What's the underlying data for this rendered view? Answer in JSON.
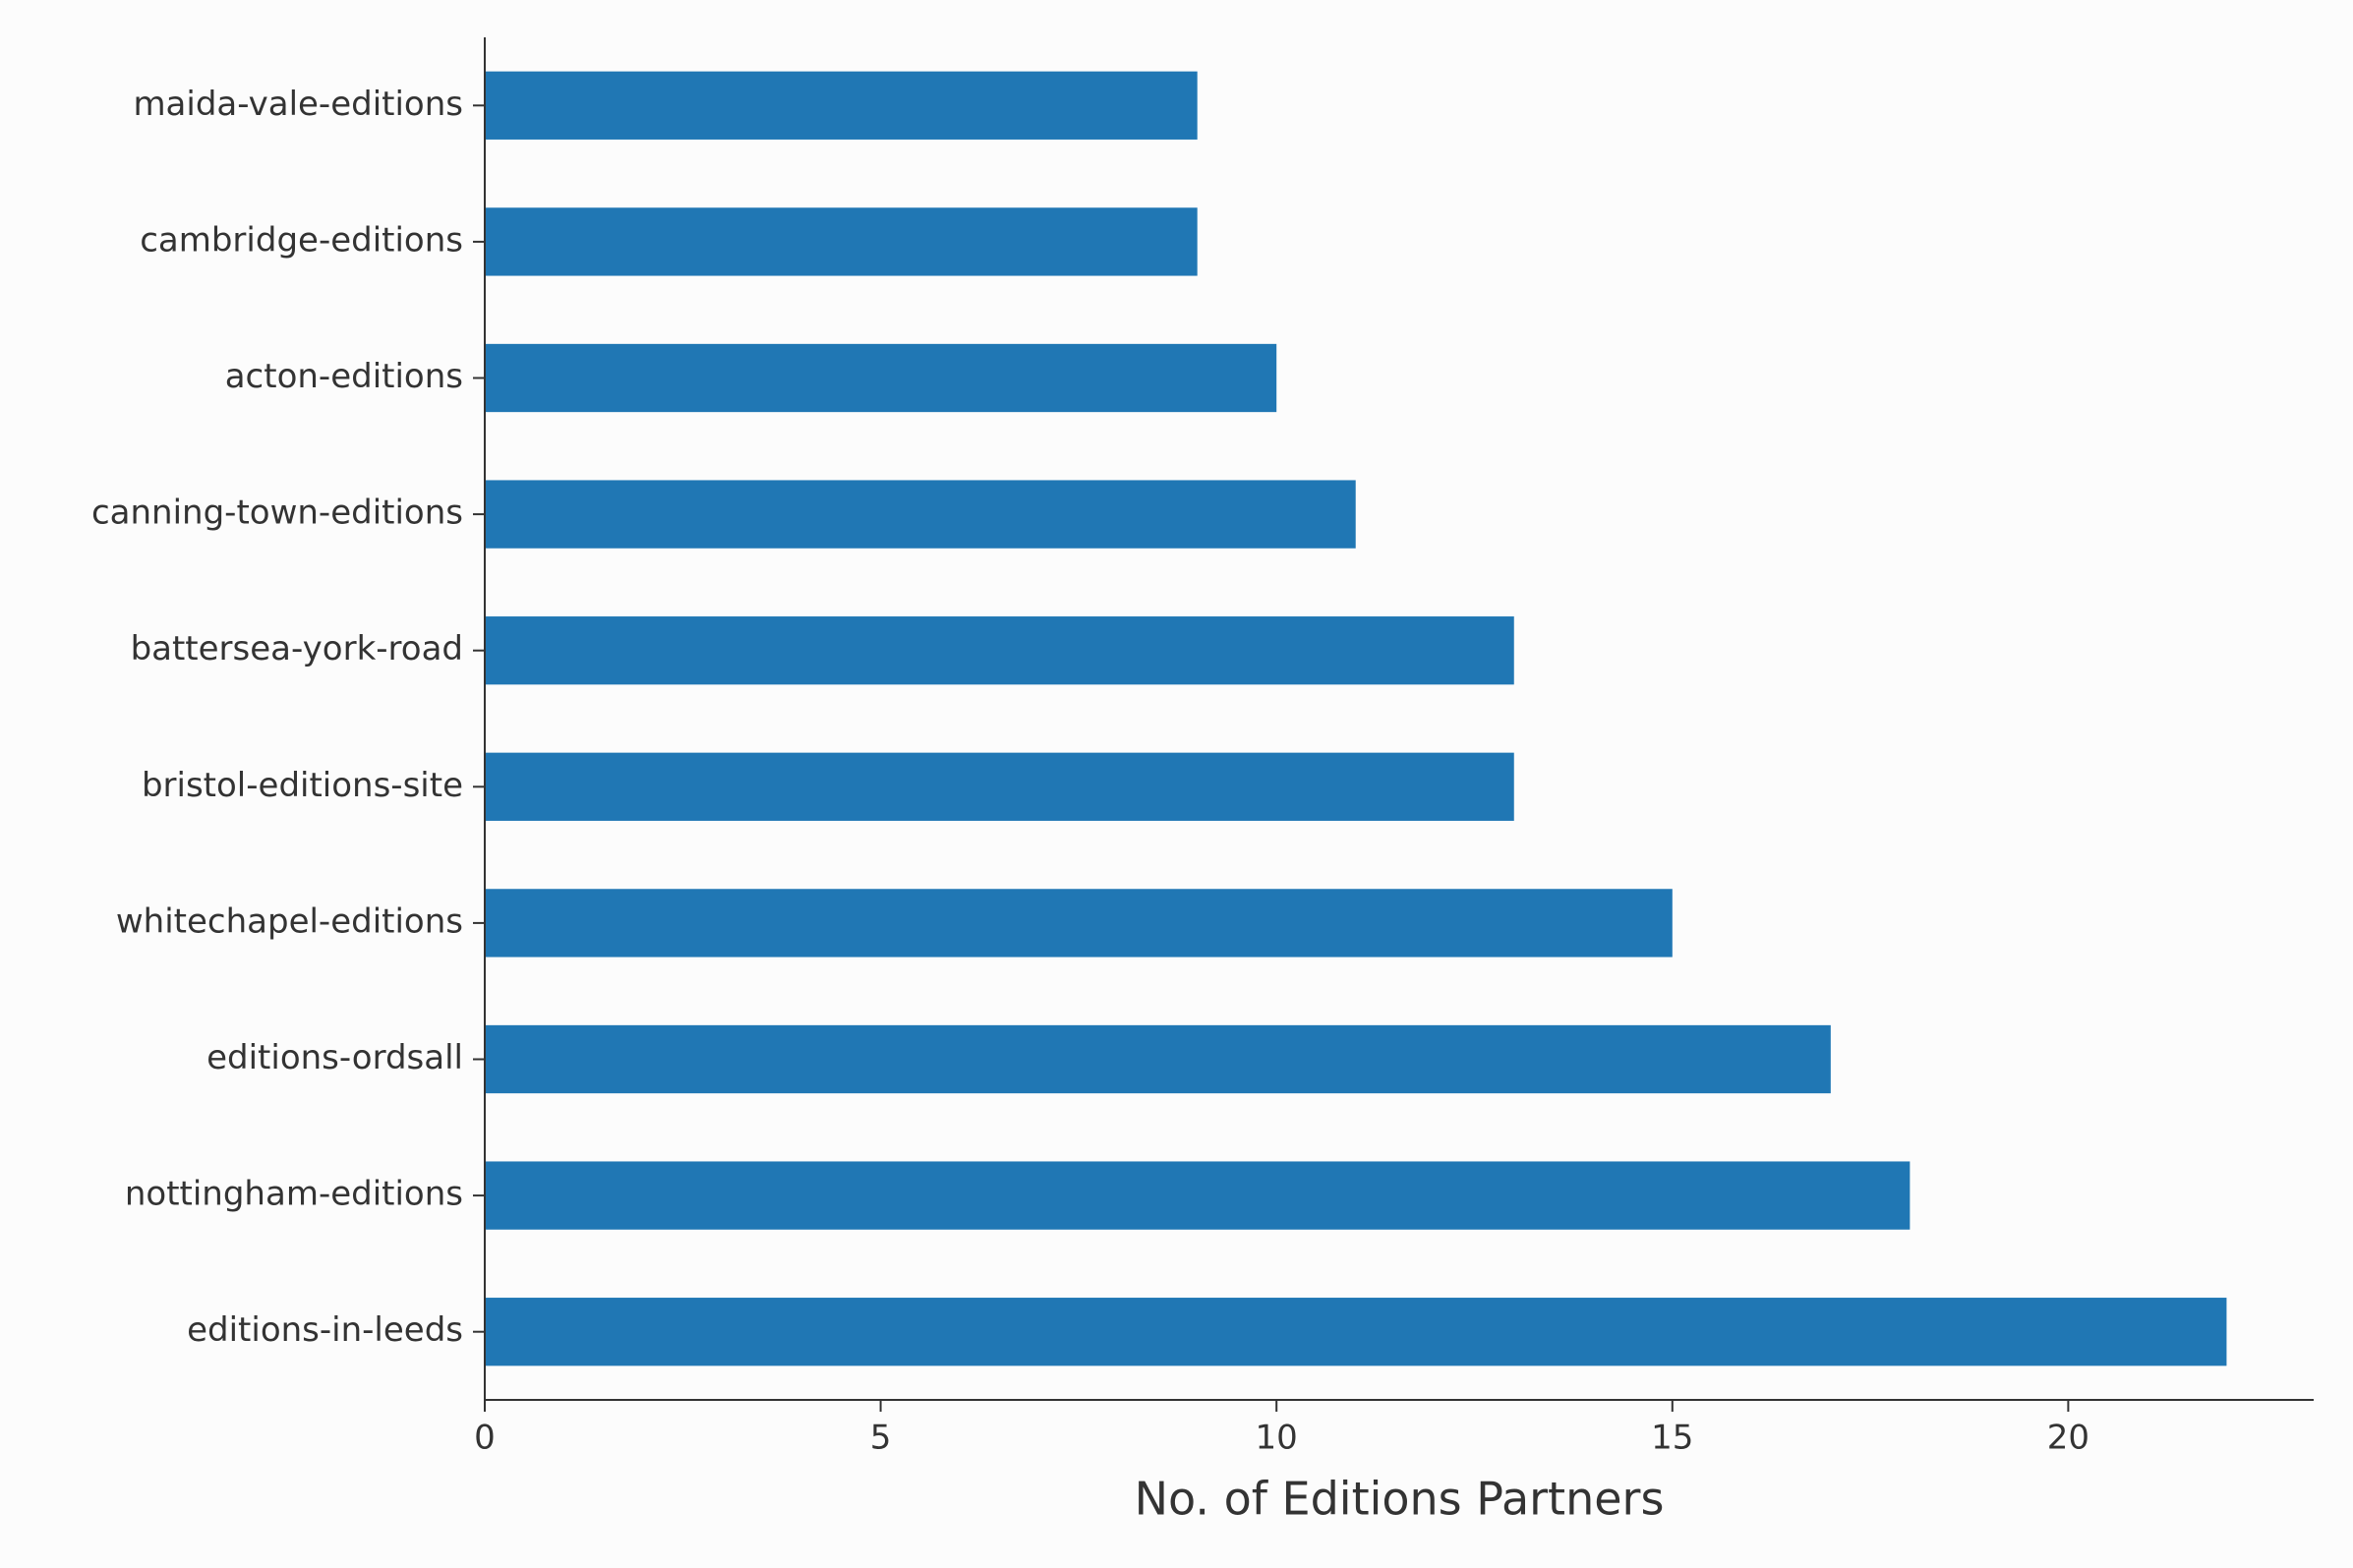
{
  "chart_data": {
    "type": "barh",
    "categories": [
      "maida-vale-editions",
      "cambridge-editions",
      "acton-editions",
      "canning-town-editions",
      "battersea-york-road",
      "bristol-editions-site",
      "whitechapel-editions",
      "editions-ordsall",
      "nottingham-editions",
      "editions-in-leeds"
    ],
    "values": [
      9,
      9,
      10,
      11,
      13,
      13,
      15,
      17,
      18,
      22
    ],
    "color": "#2077b4",
    "xlabel": "No. of Editions Partners",
    "xlim": [
      0,
      23.1
    ],
    "xticks": [
      0,
      5,
      10,
      15,
      20
    ],
    "grid": false
  }
}
